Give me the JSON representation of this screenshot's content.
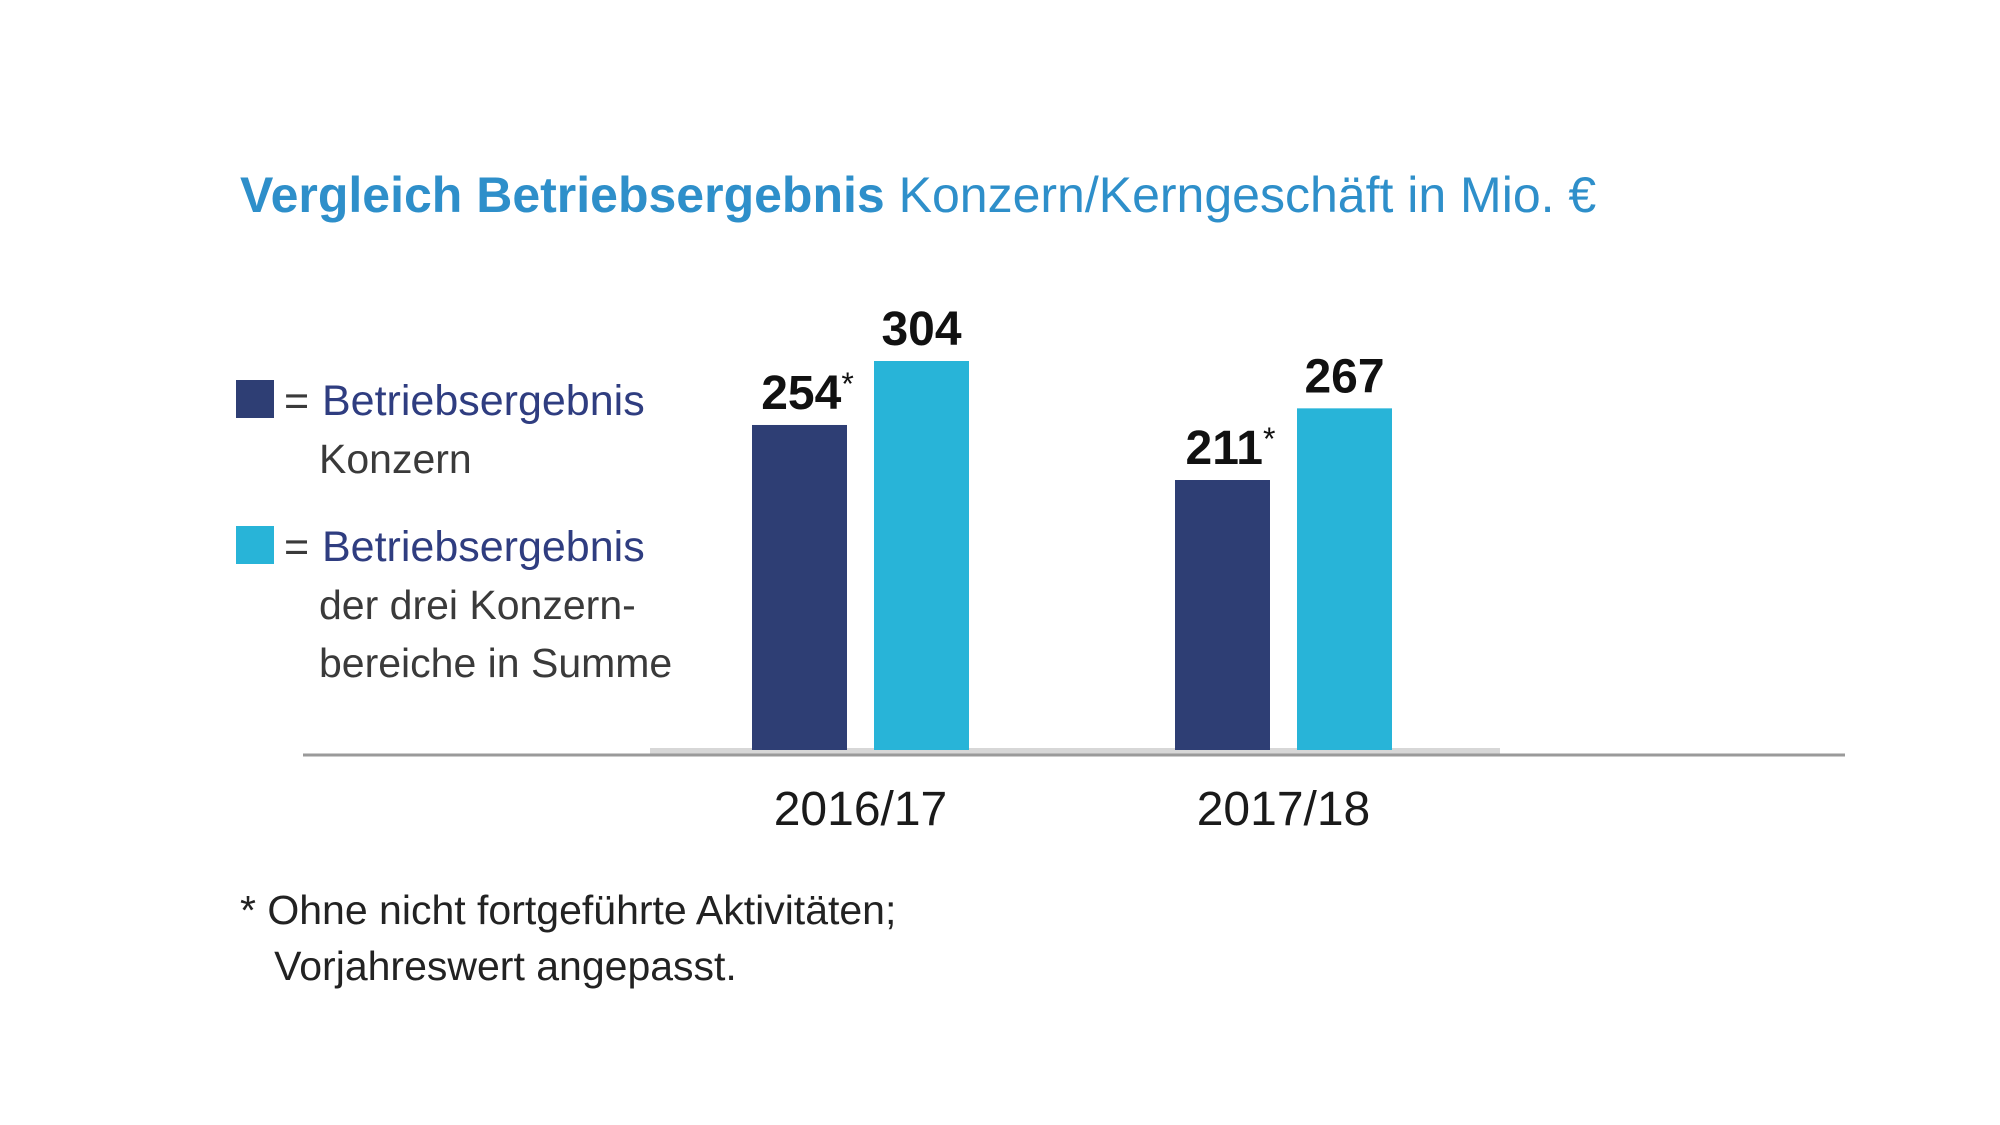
{
  "chart_data": {
    "type": "bar",
    "title": {
      "bold": "Vergleich Betriebsergebnis",
      "rest": "Konzern/Kerngeschäft in Mio. €"
    },
    "categories": [
      "2016/17",
      "2017/18"
    ],
    "series": [
      {
        "name": "Betriebsergebnis Konzern",
        "legend_head": "Betriebsergebnis",
        "legend_sub": "Konzern",
        "color": "#2e3e74",
        "values": [
          254,
          211
        ],
        "labels": [
          "254",
          "211"
        ],
        "label_marks": [
          "*",
          "*"
        ]
      },
      {
        "name": "Betriebsergebnis der drei Konzernbereiche in Summe",
        "legend_head": "Betriebsergebnis",
        "legend_sub": "der drei Konzern-\nbereiche in Summe",
        "color": "#28b4d8",
        "values": [
          304,
          267
        ],
        "labels": [
          "304",
          "267"
        ],
        "label_marks": [
          "",
          ""
        ]
      }
    ],
    "legend_equals": "=",
    "ylim": [
      0,
      304
    ],
    "grid": false,
    "legend_position": "left",
    "footnote": "* Ohne nicht fortgeführte Aktivitäten;\n   Vorjahreswert angepasst."
  }
}
